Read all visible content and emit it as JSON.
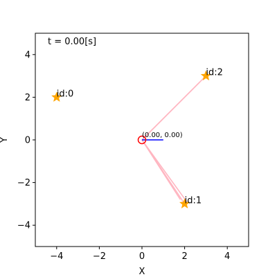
{
  "chart_data": {
    "type": "scatter",
    "title": "",
    "xlabel": "X",
    "ylabel": "Y",
    "xlim": [
      -5,
      5
    ],
    "ylim": [
      -5,
      5
    ],
    "grid": false,
    "x_ticks": [
      -4,
      -2,
      0,
      2,
      4
    ],
    "y_ticks": [
      -4,
      -2,
      0,
      2,
      4
    ],
    "x_tick_labels": [
      "−4",
      "−2",
      "0",
      "2",
      "4"
    ],
    "y_tick_labels": [
      "−4",
      "−2",
      "0",
      "2",
      "4"
    ],
    "time_label": "t = 0.00[s]",
    "robot": {
      "x": 0,
      "y": 0,
      "heading_to": [
        1,
        0
      ],
      "label": "(0.00, 0.00)",
      "color": "#ff0000",
      "heading_color": "#0000ff"
    },
    "landmarks": [
      {
        "id": "id:0",
        "x": -4,
        "y": 2
      },
      {
        "id": "id:1",
        "x": 2,
        "y": -3
      },
      {
        "id": "id:2",
        "x": 3,
        "y": 3
      }
    ],
    "observations": [
      {
        "to": [
          3.0,
          3.0
        ]
      },
      {
        "to": [
          2.7,
          2.7
        ]
      },
      {
        "to": [
          2.0,
          -3.0
        ]
      },
      {
        "to": [
          2.1,
          -2.9
        ]
      },
      {
        "to": [
          1.8,
          -2.8
        ]
      }
    ],
    "colors": {
      "landmark": "#ffa500",
      "observation": "#ffb6c1"
    }
  }
}
